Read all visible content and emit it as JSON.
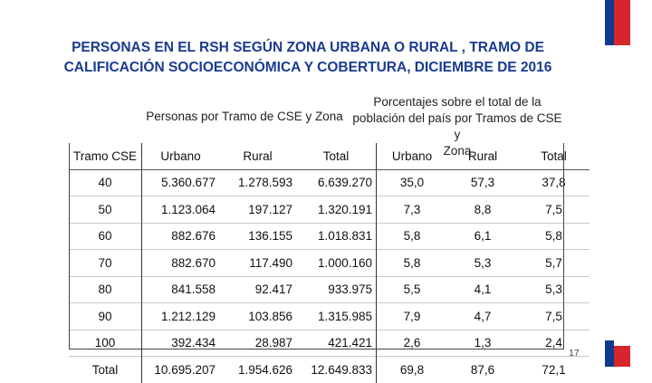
{
  "slide": {
    "title_line1": "PERSONAS EN EL RSH SEGÚN ZONA URBANA O RURAL , TRAMO DE",
    "title_line2": "CALIFICACIÓN SOCIOECONÓMICA Y COBERTURA, DICIEMBRE DE 2016",
    "group_left": "Personas por Tramo de CSE y Zona",
    "group_right_line1": "Porcentajes sobre el total de la",
    "group_right_line2": "población del país por Tramos de CSE y",
    "group_right_line3": "Zona",
    "page_number": "17"
  },
  "colors": {
    "title": "#1a3b8f",
    "flag_blue": "#0f3b8f",
    "flag_red": "#d7262b"
  },
  "table": {
    "headers": [
      "Tramo CSE",
      "Urbano",
      "Rural",
      "Total",
      "Urbano",
      "Rural",
      "Total"
    ],
    "rows": [
      [
        "40",
        "5.360.677",
        "1.278.593",
        "6.639.270",
        "35,0",
        "57,3",
        "37,8"
      ],
      [
        "50",
        "1.123.064",
        "197.127",
        "1.320.191",
        "7,3",
        "8,8",
        "7,5"
      ],
      [
        "60",
        "882.676",
        "136.155",
        "1.018.831",
        "5,8",
        "6,1",
        "5,8"
      ],
      [
        "70",
        "882.670",
        "117.490",
        "1.000.160",
        "5,8",
        "5,3",
        "5,7"
      ],
      [
        "80",
        "841.558",
        "92.417",
        "933.975",
        "5,5",
        "4,1",
        "5,3"
      ],
      [
        "90",
        "1.212.129",
        "103.856",
        "1.315.985",
        "7,9",
        "4,7",
        "7,5"
      ],
      [
        "100",
        "392.434",
        "28.987",
        "421.421",
        "2,6",
        "1,3",
        "2,4"
      ],
      [
        "Total",
        "10.695.207",
        "1.954.626",
        "12.649.833",
        "69,8",
        "87,6",
        "72,1"
      ]
    ]
  }
}
